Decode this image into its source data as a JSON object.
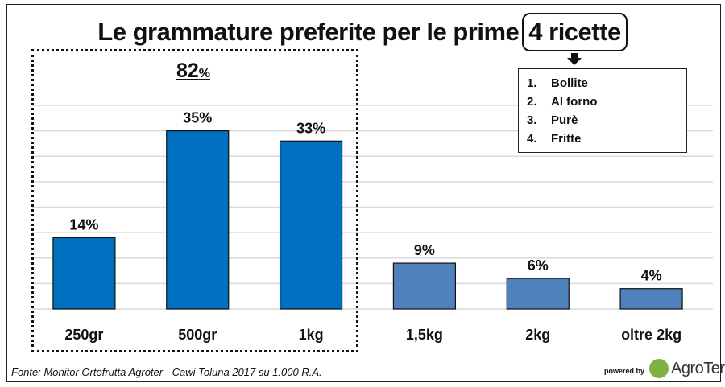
{
  "title": {
    "main": "Le grammature preferite per le prime",
    "boxed": "4 ricette"
  },
  "group_total": {
    "value": "82",
    "unit": "%"
  },
  "recipes": [
    {
      "num": "1.",
      "label": "Bollite"
    },
    {
      "num": "2.",
      "label": "Al forno"
    },
    {
      "num": "3.",
      "label": "Purè"
    },
    {
      "num": "4.",
      "label": "Fritte"
    }
  ],
  "footer": {
    "source": "Fonte: Monitor Ortofrutta Agroter - Cawi Toluna 2017 su 1.000 R.A.",
    "powered_by": "powered by",
    "logo_text": "AgroTer"
  },
  "colors": {
    "highlight_bars": "#0070C0",
    "other_bars": "#4F81BD",
    "grid": "#d9d9d9"
  },
  "chart_data": {
    "type": "bar",
    "title": "Le grammature preferite per le prime 4 ricette",
    "categories": [
      "250gr",
      "500gr",
      "1kg",
      "1,5kg",
      "2kg",
      "oltre 2kg"
    ],
    "values": [
      14,
      35,
      33,
      9,
      6,
      4
    ],
    "data_labels": [
      "14%",
      "35%",
      "33%",
      "9%",
      "6%",
      "4%"
    ],
    "highlighted": [
      true,
      true,
      true,
      false,
      false,
      false
    ],
    "ylim": [
      0,
      40
    ],
    "grid_step": 5,
    "grid": true,
    "xlabel": "",
    "ylabel": ""
  }
}
